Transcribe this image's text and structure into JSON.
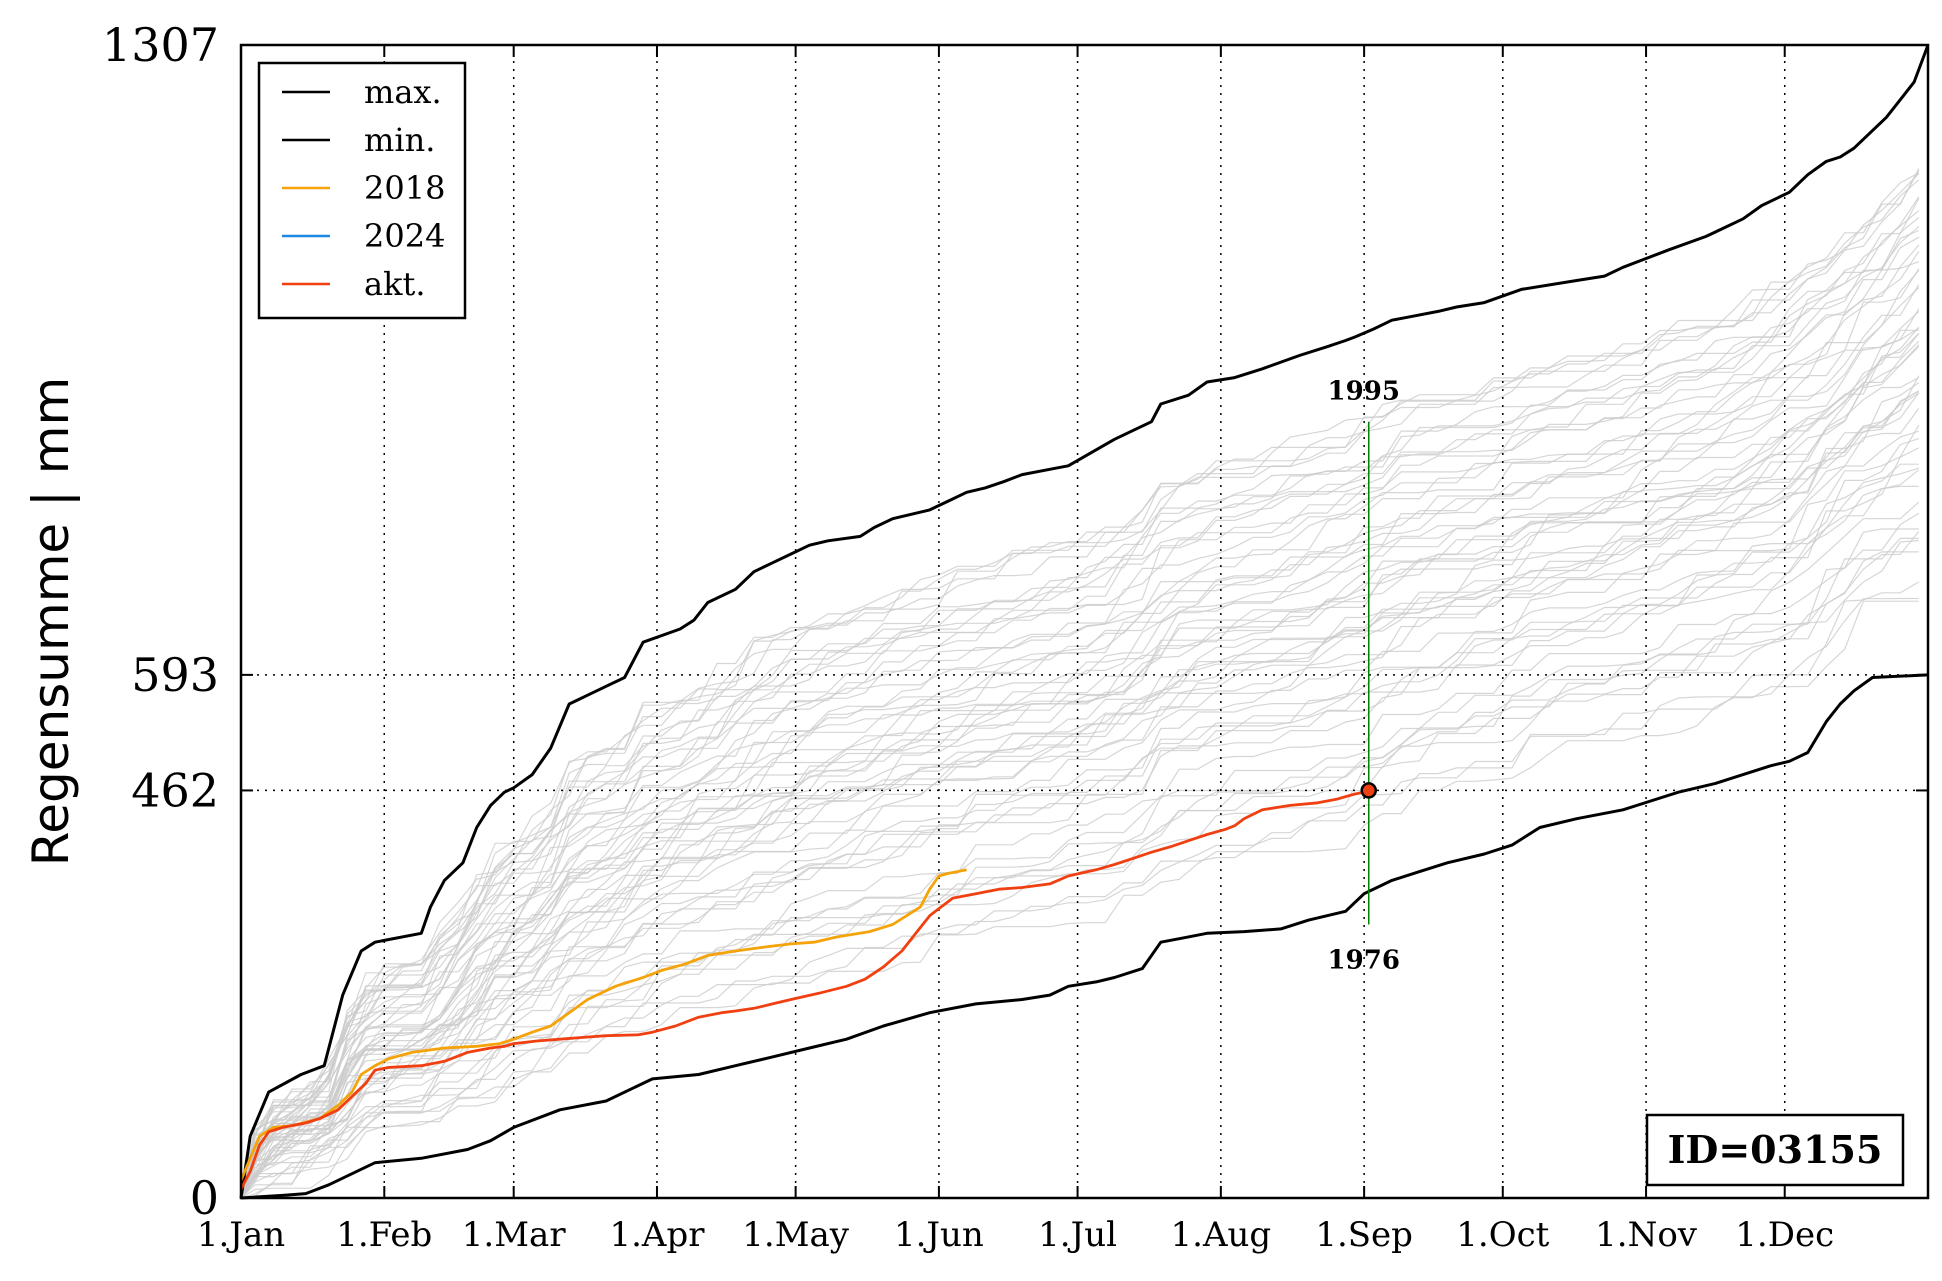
{
  "chart_data": {
    "type": "line",
    "ylabel": "Regensumme | mm",
    "xlabel": "",
    "x_unit": "day of year",
    "xlim": [
      1,
      366
    ],
    "ylim": [
      0,
      1307
    ],
    "x_ticks": [
      {
        "day": 1,
        "label": "1.Jan"
      },
      {
        "day": 32,
        "label": "1.Feb"
      },
      {
        "day": 60,
        "label": "1.Mar"
      },
      {
        "day": 91,
        "label": "1.Apr"
      },
      {
        "day": 121,
        "label": "1.May"
      },
      {
        "day": 152,
        "label": "1.Jun"
      },
      {
        "day": 182,
        "label": "1.Jul"
      },
      {
        "day": 213,
        "label": "1.Aug"
      },
      {
        "day": 244,
        "label": "1.Sep"
      },
      {
        "day": 274,
        "label": "1.Oct"
      },
      {
        "day": 305,
        "label": "1.Nov"
      },
      {
        "day": 335,
        "label": "1.Dec"
      }
    ],
    "y_ticks": [
      {
        "value": 0,
        "label": "0"
      },
      {
        "value": 462,
        "label": "462"
      },
      {
        "value": 593,
        "label": "593"
      },
      {
        "value": 1307,
        "label": "1307"
      }
    ],
    "reference_lines": {
      "y": [
        462,
        593
      ]
    },
    "grid": "vertical dotted at month starts",
    "legend_position": "top-left",
    "series": [
      {
        "name": "max.",
        "color": "#000000",
        "x": [
          1,
          3,
          7,
          14,
          19,
          23,
          27,
          30,
          32,
          40,
          42,
          45,
          49,
          52,
          55,
          58,
          60,
          64,
          68,
          72,
          74,
          76,
          80,
          84,
          88,
          96,
          99,
          102,
          108,
          112,
          116,
          120,
          124,
          128,
          135,
          138,
          142,
          146,
          150,
          154,
          158,
          162,
          166,
          170,
          176,
          180,
          190,
          198,
          200,
          206,
          210,
          216,
          222,
          230,
          236,
          240,
          242,
          246,
          250,
          255,
          260,
          264,
          270,
          278,
          290,
          296,
          300,
          305,
          310,
          318,
          322,
          326,
          330,
          336,
          340,
          344,
          347,
          350,
          354,
          357,
          360,
          363,
          366
        ],
        "y": [
          0,
          70,
          120,
          140,
          150,
          230,
          280,
          290,
          292,
          300,
          330,
          360,
          380,
          420,
          445,
          460,
          465,
          480,
          510,
          560,
          565,
          570,
          580,
          590,
          630,
          645,
          655,
          675,
          690,
          710,
          720,
          730,
          740,
          745,
          750,
          760,
          770,
          775,
          780,
          790,
          800,
          805,
          812,
          820,
          826,
          830,
          860,
          880,
          900,
          910,
          925,
          930,
          940,
          955,
          965,
          972,
          976,
          985,
          995,
          1000,
          1005,
          1010,
          1015,
          1030,
          1040,
          1045,
          1055,
          1065,
          1075,
          1090,
          1100,
          1110,
          1125,
          1140,
          1160,
          1175,
          1180,
          1190,
          1210,
          1225,
          1245,
          1265,
          1307
        ]
      },
      {
        "name": "min.",
        "color": "#000000",
        "x": [
          1,
          10,
          15,
          20,
          30,
          40,
          50,
          55,
          60,
          70,
          80,
          86,
          90,
          100,
          108,
          116,
          124,
          132,
          140,
          150,
          160,
          170,
          176,
          180,
          186,
          190,
          196,
          200,
          205,
          210,
          218,
          226,
          232,
          240,
          244,
          250,
          256,
          262,
          270,
          276,
          282,
          290,
          300,
          306,
          312,
          320,
          326,
          332,
          336,
          340,
          344,
          347,
          350,
          354,
          366
        ],
        "y": [
          0,
          3,
          5,
          15,
          40,
          45,
          55,
          65,
          80,
          100,
          110,
          125,
          135,
          140,
          150,
          160,
          170,
          180,
          195,
          210,
          220,
          225,
          230,
          240,
          245,
          250,
          260,
          290,
          295,
          300,
          302,
          305,
          315,
          325,
          345,
          360,
          370,
          380,
          390,
          400,
          420,
          430,
          440,
          450,
          460,
          470,
          480,
          490,
          495,
          505,
          540,
          560,
          575,
          590,
          593
        ]
      },
      {
        "name": "2018",
        "color": "#f5a30a",
        "x": [
          1,
          3,
          5,
          8,
          12,
          18,
          22,
          25,
          27,
          30,
          33,
          38,
          45,
          52,
          57,
          60,
          64,
          68,
          72,
          76,
          82,
          88,
          92,
          97,
          102,
          108,
          115,
          120,
          125,
          130,
          137,
          142,
          145,
          148,
          150,
          152,
          154,
          156,
          158
        ],
        "y": [
          20,
          45,
          70,
          80,
          82,
          90,
          105,
          120,
          140,
          150,
          158,
          165,
          170,
          172,
          175,
          180,
          188,
          195,
          210,
          225,
          240,
          250,
          258,
          265,
          275,
          280,
          285,
          288,
          290,
          296,
          302,
          310,
          320,
          330,
          350,
          365,
          368,
          370,
          372
        ]
      },
      {
        "name": "2024",
        "color": "#1e88e5",
        "x": [],
        "y": []
      },
      {
        "name": "akt.",
        "color": "#f04012",
        "x": [
          1,
          3,
          5,
          7,
          10,
          15,
          18,
          22,
          24,
          26,
          28,
          30,
          33,
          40,
          45,
          50,
          55,
          58,
          60,
          65,
          70,
          75,
          80,
          87,
          90,
          95,
          100,
          105,
          108,
          112,
          116,
          120,
          126,
          132,
          136,
          140,
          144,
          147,
          150,
          152,
          155,
          160,
          165,
          170,
          176,
          180,
          186,
          190,
          194,
          198,
          202,
          206,
          210,
          214,
          216,
          218,
          222,
          228,
          234,
          238,
          240,
          242,
          244,
          245
        ],
        "y": [
          10,
          30,
          60,
          75,
          80,
          85,
          90,
          100,
          110,
          120,
          130,
          145,
          148,
          150,
          155,
          165,
          170,
          172,
          175,
          178,
          180,
          182,
          184,
          185,
          188,
          195,
          205,
          210,
          212,
          215,
          220,
          225,
          232,
          240,
          248,
          262,
          280,
          300,
          320,
          328,
          340,
          345,
          350,
          352,
          356,
          365,
          372,
          378,
          385,
          392,
          398,
          405,
          412,
          418,
          422,
          430,
          440,
          445,
          448,
          452,
          455,
          458,
          460,
          462
        ]
      }
    ],
    "background_series": {
      "color": "#cccccc",
      "note": "historical years"
    },
    "current_point": {
      "x": 245,
      "y": 462
    },
    "range_marker": {
      "x": 245,
      "y_low": 310,
      "y_high": 880,
      "label_low": "1976",
      "label_high": "1995",
      "color": "#008000"
    },
    "annotation": "ID=03155"
  }
}
